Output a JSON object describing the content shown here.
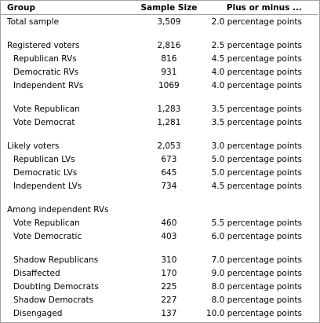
{
  "table": {
    "header": [
      "Group",
      "Sample Size",
      "Plus or minus ..."
    ],
    "sections": [
      {
        "heading": [
          "Total sample",
          "3,509",
          "2.0 percentage points"
        ],
        "rows": []
      },
      {
        "heading": [
          "Registered voters",
          "2,816",
          "2.5 percentage points"
        ],
        "rows": [
          [
            "Republican RVs",
            "816",
            "4.5 percentage points"
          ],
          [
            "Democratic RVs",
            "931",
            "4.0 percentage points"
          ],
          [
            "Independent RVs",
            "1069",
            "4.0 percentage points"
          ]
        ]
      },
      {
        "rows": [
          [
            "Vote Republican",
            "1,283",
            "3.5 percentage points"
          ],
          [
            "Vote Democrat",
            "1,281",
            "3.5 percentage points"
          ]
        ]
      },
      {
        "heading": [
          "Likely voters",
          "2,053",
          "3.0 percentage points"
        ],
        "rows": [
          [
            "Republican LVs",
            "673",
            "5.0 percentage points"
          ],
          [
            "Democratic LVs",
            "645",
            "5.0 percentage points"
          ],
          [
            "Independent LVs",
            "734",
            "4.5 percentage points"
          ]
        ]
      },
      {
        "heading": [
          "Among independent RVs"
        ],
        "rows": [
          [
            "Vote Republican",
            "460",
            "5.5 percentage points"
          ],
          [
            "Vote Democratic",
            "403",
            "6.0 percentage points"
          ]
        ]
      },
      {
        "rows": [
          [
            "Shadow Republicans",
            "310",
            "7.0 percentage points"
          ],
          [
            "Disaffected",
            "170",
            "9.0 percentage points"
          ],
          [
            "Doubting Democrats",
            "225",
            "8.0 percentage points"
          ],
          [
            "Shadow Democrats",
            "227",
            "8.0 percentage points"
          ],
          [
            "Disengaged",
            "137",
            "10.0 percentage points"
          ]
        ]
      }
    ]
  }
}
